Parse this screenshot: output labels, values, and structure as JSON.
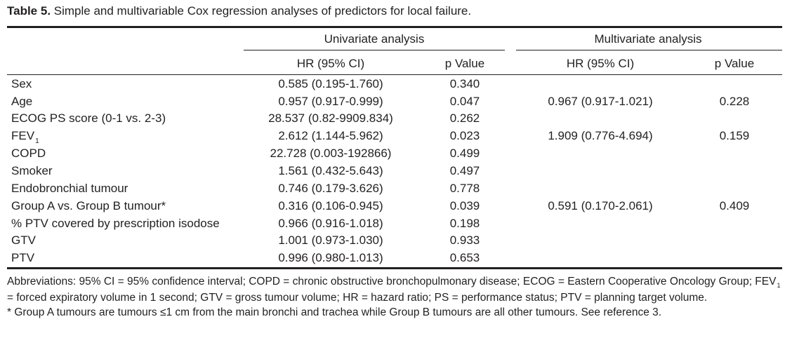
{
  "caption": {
    "label": "Table 5.",
    "text": "Simple and multivariable Cox regression analyses of predictors for local failure."
  },
  "headers": {
    "univariate": "Univariate analysis",
    "multivariate": "Multivariate analysis",
    "hr": "HR (95% CI)",
    "p": "p Value"
  },
  "rows": [
    {
      "predictor": "Sex",
      "predictor_sub": "",
      "uni_hr": "0.585 (0.195-1.760)",
      "uni_p": "0.340",
      "multi_hr": "",
      "multi_p": ""
    },
    {
      "predictor": "Age",
      "predictor_sub": "",
      "uni_hr": "0.957 (0.917-0.999)",
      "uni_p": "0.047",
      "multi_hr": "0.967 (0.917-1.021)",
      "multi_p": "0.228"
    },
    {
      "predictor": "ECOG PS score (0-1 vs. 2-3)",
      "predictor_sub": "",
      "uni_hr": "28.537 (0.82-9909.834)",
      "uni_p": "0.262",
      "multi_hr": "",
      "multi_p": ""
    },
    {
      "predictor": "FEV",
      "predictor_sub": "1",
      "uni_hr": "2.612 (1.144-5.962)",
      "uni_p": "0.023",
      "multi_hr": "1.909 (0.776-4.694)",
      "multi_p": "0.159"
    },
    {
      "predictor": "COPD",
      "predictor_sub": "",
      "uni_hr": "22.728 (0.003-192866)",
      "uni_p": "0.499",
      "multi_hr": "",
      "multi_p": ""
    },
    {
      "predictor": "Smoker",
      "predictor_sub": "",
      "uni_hr": "1.561 (0.432-5.643)",
      "uni_p": "0.497",
      "multi_hr": "",
      "multi_p": ""
    },
    {
      "predictor": "Endobronchial tumour",
      "predictor_sub": "",
      "uni_hr": "0.746 (0.179-3.626)",
      "uni_p": "0.778",
      "multi_hr": "",
      "multi_p": ""
    },
    {
      "predictor": "Group A vs. Group B tumour*",
      "predictor_sub": "",
      "uni_hr": "0.316 (0.106-0.945)",
      "uni_p": "0.039",
      "multi_hr": "0.591 (0.170-2.061)",
      "multi_p": "0.409"
    },
    {
      "predictor": "% PTV covered by prescription isodose",
      "predictor_sub": "",
      "uni_hr": "0.966 (0.916-1.018)",
      "uni_p": "0.198",
      "multi_hr": "",
      "multi_p": ""
    },
    {
      "predictor": "GTV",
      "predictor_sub": "",
      "uni_hr": "1.001 (0.973-1.030)",
      "uni_p": "0.933",
      "multi_hr": "",
      "multi_p": ""
    },
    {
      "predictor": "PTV",
      "predictor_sub": "",
      "uni_hr": "0.996 (0.980-1.013)",
      "uni_p": "0.653",
      "multi_hr": "",
      "multi_p": ""
    }
  ],
  "notes": {
    "abbrev_part1": "Abbreviations: 95% CI = 95% confidence interval; COPD = chronic obstructive bronchopulmonary disease; ECOG = Eastern Cooperative Oncology Group; FEV",
    "abbrev_sub": "1",
    "abbrev_part2": " = forced expiratory volume in 1 second; GTV = gross tumour volume; HR = hazard ratio; PS = performance status; PTV = planning target volume.",
    "footnote": "* Group A tumours are tumours ≤1 cm from the main bronchi and trachea while Group B tumours are all other tumours. See reference 3."
  }
}
